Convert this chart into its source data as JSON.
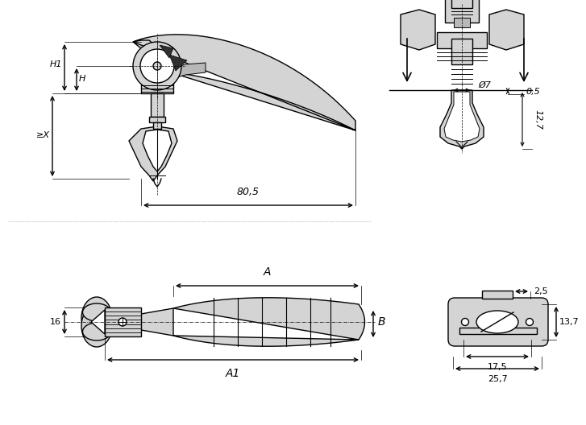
{
  "bg_color": "#ffffff",
  "line_color": "#000000",
  "part_color": "#d4d4d4",
  "part_edge": "#000000",
  "fig_width": 7.27,
  "fig_height": 5.28,
  "dpi": 100,
  "lbl_H1": "H1",
  "lbl_H": "H",
  "lbl_X": "≥X",
  "lbl_80_5": "80,5",
  "lbl_dia7": "Ø7",
  "lbl_0_5": "0,5",
  "lbl_12_7": "12,7",
  "lbl_A": "A",
  "lbl_A1": "A1",
  "lbl_B": "B",
  "lbl_16": "16",
  "lbl_2_5": "2,5",
  "lbl_13_7": "13,7",
  "lbl_17_5": "17,5",
  "lbl_25_7": "25,7"
}
